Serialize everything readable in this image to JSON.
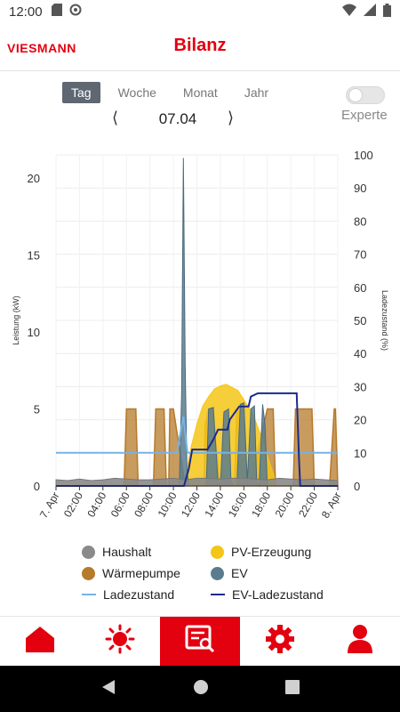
{
  "status_bar": {
    "time": "12:00",
    "icons": [
      "sd-card-icon",
      "sync-icon",
      "wifi-icon",
      "signal-icon",
      "battery-icon"
    ]
  },
  "header": {
    "logo": "VIESMANN",
    "title": "Bilanz"
  },
  "period_tabs": [
    {
      "label": "Tag",
      "active": true
    },
    {
      "label": "Woche",
      "active": false
    },
    {
      "label": "Monat",
      "active": false
    },
    {
      "label": "Jahr",
      "active": false
    }
  ],
  "expert": {
    "label": "Experte",
    "enabled": false
  },
  "date_nav": {
    "date": "07.04",
    "prev_icon": "chevron-left-icon",
    "next_icon": "chevron-right-icon"
  },
  "colors": {
    "haushalt": "#8a8a8a",
    "pv": "#f5c518",
    "waermepumpe": "#b57a2a",
    "ev": "#5b7c8f",
    "ladezustand": "#74b3e8",
    "ev_ladezustand": "#1a2a8f",
    "accent": "#e3000f"
  },
  "chart_data": {
    "type": "area",
    "x_unit": "hours",
    "xlim": [
      0,
      24
    ],
    "x_tick_labels": [
      "7. Apr",
      "02:00",
      "04:00",
      "06:00",
      "08:00",
      "10:00",
      "12:00",
      "14:00",
      "16:00",
      "18:00",
      "20:00",
      "22:00",
      "8. Apr"
    ],
    "y_left": {
      "label": "Leistung (kW)",
      "ticks": [
        0,
        5,
        10,
        15,
        20
      ],
      "lim": [
        0,
        21.5
      ]
    },
    "y_right": {
      "label": "Ladezustand (%)",
      "ticks": [
        0,
        10,
        20,
        30,
        40,
        50,
        60,
        70,
        80,
        90,
        100
      ],
      "lim": [
        0,
        100
      ]
    },
    "grid": true,
    "legend_position": "bottom",
    "series": [
      {
        "name": "Wärmepumpe",
        "kind": "area",
        "axis": "left",
        "color_key": "waermepumpe",
        "x": [
          0,
          4.3,
          4.5,
          5.8,
          6.0,
          6.8,
          7.0,
          7.2,
          7.4,
          7.8,
          8.0,
          8.3,
          8.5,
          9.2,
          9.4,
          9.6,
          9.7,
          10.0,
          11.0,
          12.2,
          12.6,
          12.7,
          13.0,
          13.3,
          14.0,
          14.2,
          15.0,
          15.2,
          15.4,
          16.0,
          16.2,
          16.5,
          18.0,
          18.5,
          18.7,
          19.5,
          19.6,
          20.0,
          20.2,
          20.4,
          21.8,
          22.0,
          23.0,
          23.2,
          23.3,
          23.7,
          23.8,
          24.0
        ],
        "y": [
          0,
          0,
          0,
          0,
          5,
          5,
          0,
          0,
          0,
          0,
          0,
          0,
          5,
          5,
          0,
          0,
          5,
          5,
          0,
          0,
          0,
          4,
          5,
          5,
          0,
          0,
          0,
          0,
          5,
          5,
          0,
          0,
          5,
          5,
          0,
          0,
          0,
          0,
          0,
          5,
          5,
          0,
          0,
          0,
          0,
          5,
          5,
          0
        ]
      },
      {
        "name": "PV-Erzeugung",
        "kind": "area",
        "axis": "left",
        "color_key": "pv",
        "x": [
          10.5,
          11.0,
          11.5,
          12.0,
          12.5,
          13.0,
          13.5,
          14.0,
          14.5,
          15.0,
          15.5,
          16.0,
          16.5,
          17.0,
          17.5,
          18.0,
          18.5,
          18.8
        ],
        "y": [
          0,
          0.5,
          2.5,
          4.0,
          5.2,
          5.8,
          6.3,
          6.5,
          6.6,
          6.4,
          6.2,
          5.6,
          5.0,
          4.2,
          3.2,
          2.0,
          0.8,
          0
        ]
      },
      {
        "name": "EV",
        "kind": "area",
        "axis": "left",
        "color_key": "ev",
        "x": [
          0,
          10.5,
          10.7,
          10.85,
          11.0,
          11.15,
          11.3,
          11.5,
          11.7,
          12.0,
          12.3,
          12.8,
          13.0,
          13.4,
          13.8,
          14.0,
          14.3,
          14.7,
          14.9,
          15.1,
          15.4,
          15.7,
          16.0,
          16.3,
          16.6,
          16.9,
          17.1,
          17.3,
          17.6,
          17.8,
          18.0,
          24.0
        ],
        "y": [
          0,
          0,
          6.0,
          21.3,
          8.0,
          1.2,
          0,
          0,
          0,
          0,
          0,
          0,
          5.0,
          5.1,
          0.3,
          0,
          4.8,
          5.0,
          0.4,
          0,
          0,
          5.3,
          5.4,
          0.3,
          5.0,
          5.2,
          0.2,
          0,
          5.3,
          4.0,
          0,
          0
        ]
      },
      {
        "name": "Haushalt",
        "kind": "area",
        "axis": "left",
        "color_key": "haushalt",
        "x": [
          0,
          1,
          2,
          3,
          4,
          5,
          6,
          7,
          8,
          9,
          10,
          11,
          12,
          13,
          14,
          15,
          16,
          17,
          18,
          19,
          20,
          21,
          22,
          23,
          24
        ],
        "y": [
          0.4,
          0.35,
          0.45,
          0.35,
          0.4,
          0.5,
          0.45,
          0.4,
          0.4,
          0.45,
          0.5,
          0.4,
          0.5,
          0.5,
          0.45,
          0.5,
          0.5,
          0.45,
          0.4,
          0.5,
          0.45,
          0.4,
          0.45,
          0.4,
          0.35
        ]
      },
      {
        "name": "Ladezustand",
        "kind": "line",
        "axis": "right",
        "color_key": "ladezustand",
        "x": [
          0,
          10.3,
          10.85,
          11.2,
          24.0
        ],
        "y": [
          10,
          10,
          21,
          10,
          10
        ]
      },
      {
        "name": "EV-Ladezustand",
        "kind": "line",
        "axis": "right",
        "color_key": "ev_ladezustand",
        "x": [
          0,
          10.9,
          11.3,
          11.6,
          12.9,
          13.4,
          13.8,
          14.2,
          14.6,
          14.8,
          15.6,
          16.2,
          16.4,
          16.6,
          17.2,
          17.3,
          20.5,
          20.6,
          20.7,
          20.8,
          24.0
        ],
        "y": [
          0,
          0,
          5,
          11,
          11,
          14,
          17,
          17,
          17,
          20,
          24,
          24,
          24,
          27,
          28,
          28,
          28,
          18,
          8,
          0,
          0
        ]
      }
    ]
  },
  "legend": [
    {
      "label": "Haushalt",
      "kind": "dot",
      "color_key": "haushalt"
    },
    {
      "label": "PV-Erzeugung",
      "kind": "dot",
      "color_key": "pv"
    },
    {
      "label": "Wärmepumpe",
      "kind": "dot",
      "color_key": "waermepumpe"
    },
    {
      "label": "EV",
      "kind": "dot",
      "color_key": "ev"
    },
    {
      "label": "Ladezustand",
      "kind": "line",
      "color_key": "ladezustand"
    },
    {
      "label": "EV-Ladezustand",
      "kind": "line",
      "color_key": "ev_ladezustand"
    }
  ],
  "bottom_nav": [
    {
      "icon": "home-icon",
      "active": false
    },
    {
      "icon": "sun-icon",
      "active": false
    },
    {
      "icon": "report-icon",
      "active": true
    },
    {
      "icon": "gear-icon",
      "active": false
    },
    {
      "icon": "person-icon",
      "active": false
    }
  ],
  "system_nav": [
    "back-icon",
    "home-circle-icon",
    "recents-icon"
  ]
}
